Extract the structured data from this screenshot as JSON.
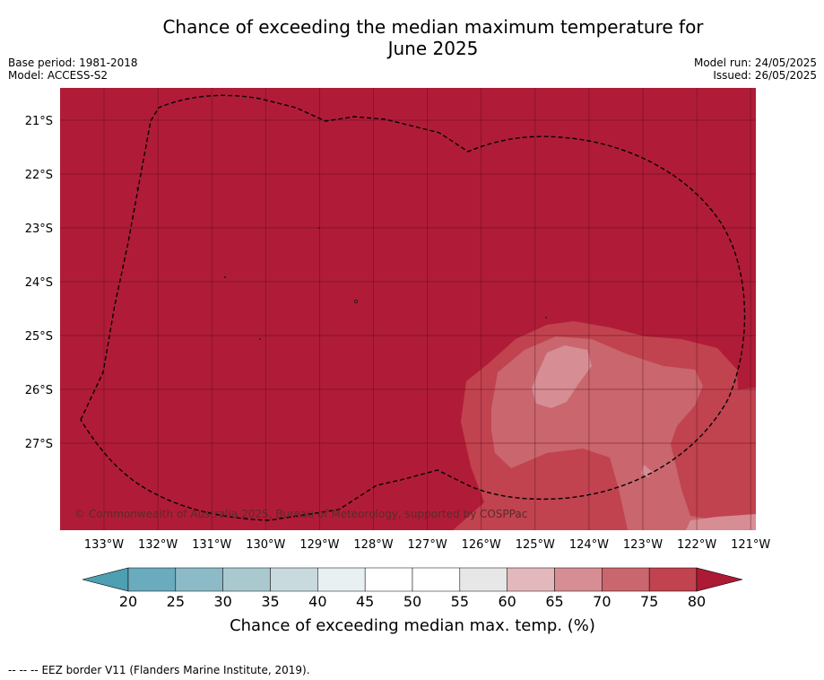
{
  "header": {
    "title_line1": "Chance of exceeding the median maximum temperature for",
    "title_line2": "June 2025",
    "base_period": "Base period: 1981-2018",
    "model": "Model: ACCESS-S2",
    "model_run": "Model run: 24/05/2025",
    "issued": "Issued: 26/05/2025"
  },
  "map": {
    "lat_labels": [
      "21°S",
      "22°S",
      "23°S",
      "24°S",
      "25°S",
      "26°S",
      "27°S"
    ],
    "lon_labels": [
      "133°W",
      "132°W",
      "131°W",
      "130°W",
      "129°W",
      "128°W",
      "127°W",
      "126°W",
      "125°W",
      "124°W",
      "123°W",
      "122°W",
      "121°W"
    ],
    "copyright": "© Commonwealth of Australia 2025, Bureau of Meteorology, supported by COSPPac",
    "colors": {
      "above_80": "#b01c38",
      "c75_80": "#c0434f",
      "c70_75": "#c9666e",
      "c65_70": "#d68d93"
    },
    "eez_line_style": "black dashed"
  },
  "colorbar": {
    "ticks": [
      "20",
      "25",
      "30",
      "35",
      "40",
      "45",
      "50",
      "55",
      "60",
      "65",
      "70",
      "75",
      "80"
    ],
    "colors": [
      "#6aabbd",
      "#8cbac6",
      "#aac9cf",
      "#c9dadf",
      "#e9f0f2",
      "#ffffff",
      "#ffffff",
      "#e7e7e7",
      "#e3b8bd",
      "#d68d93",
      "#c9666e",
      "#c0434f"
    ],
    "low_extend_color": "#4e9fb2",
    "high_extend_color": "#ad1a36",
    "label": "Chance of exceeding median max. temp. (%)"
  },
  "footer": {
    "legend_symbol": "--  --  --",
    "legend_text": "EEZ border V11 (Flanders Marine Institute, 2019)."
  }
}
